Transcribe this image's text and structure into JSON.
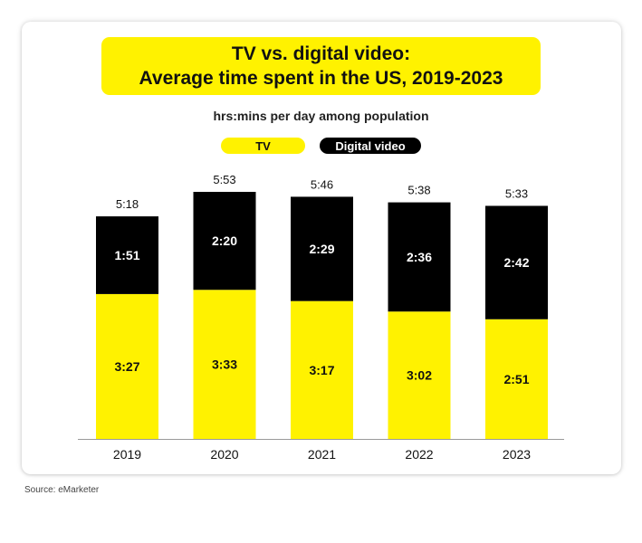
{
  "title": {
    "line1": "TV vs. digital video:",
    "line2": "Average time spent in the US, 2019-2023"
  },
  "subtitle": "hrs:mins per day among population",
  "legend": {
    "tv": "TV",
    "digital_video": "Digital video"
  },
  "source": "Source: eMarketer",
  "colors": {
    "tv": "#fff200",
    "digital_video": "#000000",
    "axis": "#999999"
  },
  "chart_data": {
    "type": "bar",
    "stacked": true,
    "categories": [
      "2019",
      "2020",
      "2021",
      "2022",
      "2023"
    ],
    "series": [
      {
        "name": "TV",
        "values": [
          207,
          213,
          197,
          182,
          171
        ],
        "labels": [
          "3:27",
          "3:33",
          "3:17",
          "3:02",
          "2:51"
        ]
      },
      {
        "name": "Digital video",
        "values": [
          111,
          140,
          149,
          156,
          162
        ],
        "labels": [
          "1:51",
          "2:20",
          "2:29",
          "2:36",
          "2:42"
        ]
      }
    ],
    "totals": [
      "5:18",
      "5:53",
      "5:46",
      "5:38",
      "5:33"
    ],
    "ylim": [
      0,
      353
    ],
    "legend_position": "top-center",
    "grid": false
  }
}
